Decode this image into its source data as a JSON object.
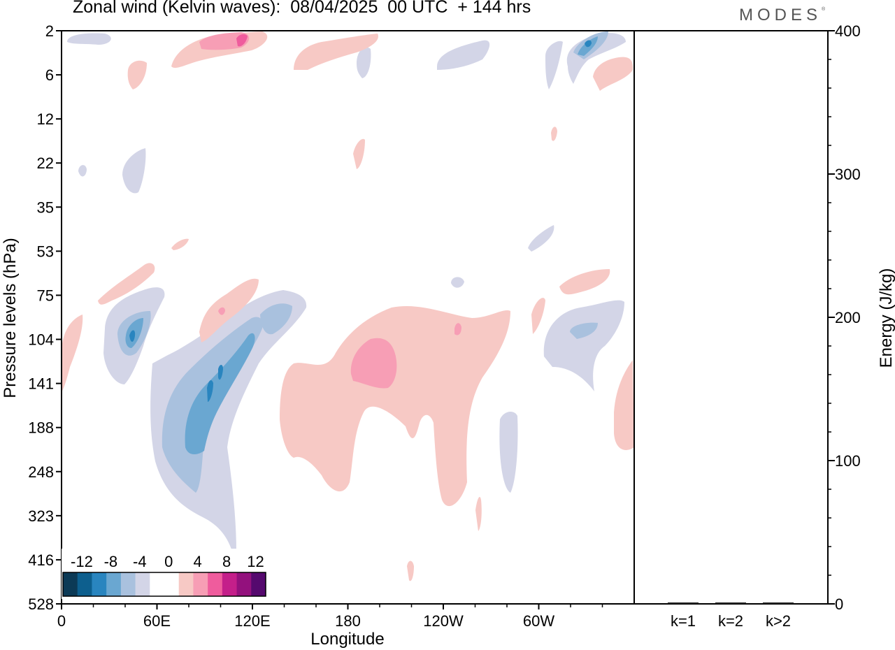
{
  "header": {
    "title": "Zonal wind (Kelvin waves):  08/04/2025  00 UTC  + 144 hrs",
    "brand": "MODES",
    "brand_mark": "®"
  },
  "chart_data": [
    {
      "type": "heatmap",
      "title": "Zonal wind (Kelvin waves):  08/04/2025  00 UTC  + 144 hrs",
      "xlabel": "Longitude",
      "ylabel": "Pressure levels (hPa)",
      "x_ticks": [
        "0",
        "60E",
        "120E",
        "180",
        "120W",
        "60W"
      ],
      "y_ticks": [
        "2",
        "6",
        "12",
        "22",
        "35",
        "53",
        "75",
        "104",
        "141",
        "188",
        "248",
        "323",
        "416",
        "528"
      ],
      "colorbar": {
        "labels": [
          "-12",
          "-8",
          "-4",
          "0",
          "4",
          "8",
          "12"
        ],
        "colors": [
          "#0c3a56",
          "#0d5f8e",
          "#2985bf",
          "#6aa7d1",
          "#a9c1de",
          "#d3d5e7",
          "#ffffff",
          "#ffffff",
          "#f7c9c5",
          "#f79eb5",
          "#ef5c9d",
          "#c41f8a",
          "#93117d",
          "#55096e"
        ]
      },
      "features": [
        {
          "sign": "negative",
          "level": 4,
          "lon": 95,
          "pressure": 141
        },
        {
          "sign": "negative",
          "level": 3,
          "lon": 40,
          "pressure": 104
        },
        {
          "sign": "negative",
          "level": 2,
          "lon": 312,
          "pressure": 3
        },
        {
          "sign": "positive",
          "level": 3,
          "lon": 190,
          "pressure": 125
        },
        {
          "sign": "positive",
          "level": 3,
          "lon": 115,
          "pressure": 3
        }
      ]
    },
    {
      "type": "bar",
      "categories": [
        "k=1",
        "k=2",
        "k>2"
      ],
      "values": [
        0.5,
        0.5,
        0.5
      ],
      "ylabel": "Energy (J/kg)",
      "ylim": [
        0,
        400
      ],
      "y_ticks": [
        "0",
        "100",
        "200",
        "300",
        "400"
      ]
    }
  ]
}
